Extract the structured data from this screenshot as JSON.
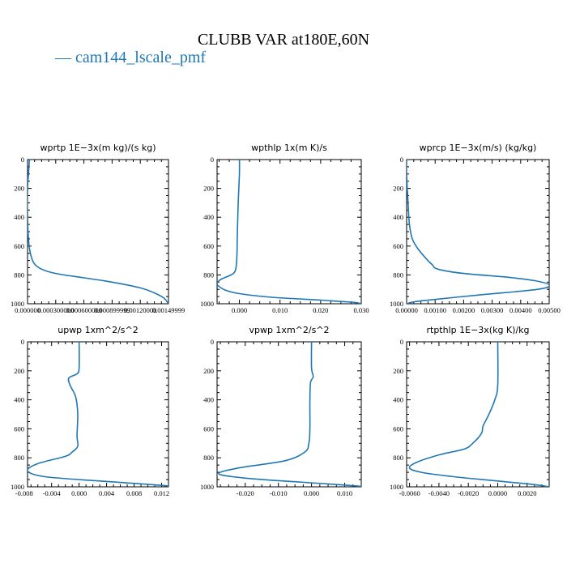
{
  "figure": {
    "title": "CLUBB VAR at180E,60N",
    "legend_label": "— cam144_lscale_pmf",
    "line_color": "#1f77b4"
  },
  "chart_data": [
    {
      "type": "line",
      "title": "wprtp   1E−3x(m kg)/(s kg)",
      "xlim": [
        0,
        0.0015
      ],
      "ylim": [
        1000,
        0
      ],
      "xticks": [
        0,
        0.0003,
        0.0006,
        0.0009,
        0.0012,
        0.0015
      ],
      "xtick_labels": [
        "0.000000",
        "0.000300000",
        "0.000600000",
        "0.000899999",
        "0.00120000",
        "0.00149999"
      ],
      "yticks": [
        0,
        200,
        400,
        600,
        800,
        1000
      ],
      "ytick_labels": [
        "0",
        "200",
        "400",
        "600",
        "800",
        "1000"
      ],
      "x": [
        2e-05,
        1e-05,
        0.0,
        0.0,
        1e-05,
        3e-05,
        7e-05,
        0.00015,
        0.0003,
        0.0006,
        0.0009,
        0.0012,
        0.00135,
        0.00145,
        0.0015
      ],
      "y": [
        0,
        100,
        200,
        400,
        550,
        650,
        720,
        760,
        790,
        820,
        850,
        890,
        925,
        960,
        1000
      ]
    },
    {
      "type": "line",
      "title": "wpthlp   1x(m K)/s",
      "xlim": [
        -0.0055,
        0.03
      ],
      "ylim": [
        1000,
        0
      ],
      "xticks": [
        0.0,
        0.01,
        0.02,
        0.03
      ],
      "xtick_labels": [
        "0.000",
        "0.010",
        "0.020",
        "0.030"
      ],
      "yticks": [
        0,
        200,
        400,
        600,
        800,
        1000
      ],
      "ytick_labels": [
        "0",
        "200",
        "400",
        "600",
        "800",
        "1000"
      ],
      "x": [
        0.0,
        0.0,
        -0.0003,
        -0.0005,
        -0.0006,
        -0.0008,
        -0.0015,
        -0.0045,
        -0.0055,
        -0.005,
        -0.0035,
        0.0,
        0.008,
        0.02,
        0.028,
        0.03
      ],
      "y": [
        0,
        100,
        300,
        500,
        650,
        740,
        790,
        830,
        860,
        880,
        905,
        930,
        955,
        975,
        990,
        1000
      ]
    },
    {
      "type": "line",
      "title": "wprcp   1E−3x(m/s) (kg/kg)",
      "xlim": [
        0,
        0.005
      ],
      "ylim": [
        1000,
        0
      ],
      "xticks": [
        0,
        0.001,
        0.002,
        0.003,
        0.004,
        0.005
      ],
      "xtick_labels": [
        "0.00000",
        "0.00100",
        "0.00200",
        "0.00300",
        "0.00400",
        "0.00500"
      ],
      "yticks": [
        0,
        200,
        400,
        600,
        800,
        1000
      ],
      "ytick_labels": [
        "0",
        "200",
        "400",
        "600",
        "800",
        "1000"
      ],
      "x": [
        0.0,
        0.0,
        5e-05,
        0.0001,
        0.0002,
        0.0004,
        0.0007,
        0.0009,
        0.0011,
        0.002,
        0.0035,
        0.0045,
        0.005,
        0.0046,
        0.0025,
        0.0005,
        0.0
      ],
      "y": [
        0,
        100,
        300,
        450,
        550,
        620,
        690,
        730,
        760,
        790,
        815,
        840,
        870,
        900,
        940,
        980,
        1000
      ]
    },
    {
      "type": "line",
      "title": "upwp   1xm^2/s^2",
      "xlim": [
        -0.0075,
        0.013
      ],
      "ylim": [
        1000,
        0
      ],
      "xticks": [
        -0.008,
        -0.004,
        0.0,
        0.004,
        0.008,
        0.012
      ],
      "xtick_labels": [
        "-0.008",
        "-0.004",
        "0.000",
        "0.004",
        "0.008",
        "0.012"
      ],
      "yticks": [
        0,
        200,
        400,
        600,
        800,
        1000
      ],
      "ytick_labels": [
        "0",
        "200",
        "400",
        "600",
        "800",
        "1000"
      ],
      "x": [
        0.0,
        0.0,
        -0.0003,
        -0.0015,
        -0.0013,
        -0.0005,
        -0.0002,
        -0.0003,
        -0.0002,
        -0.001,
        -0.002,
        -0.006,
        -0.0075,
        -0.005,
        0.003,
        0.012,
        0.013
      ],
      "y": [
        0,
        180,
        220,
        250,
        300,
        380,
        500,
        650,
        720,
        760,
        790,
        840,
        890,
        930,
        960,
        990,
        1000
      ]
    },
    {
      "type": "line",
      "title": "vpwp   1xm^2/s^2",
      "xlim": [
        -0.0285,
        0.015
      ],
      "ylim": [
        1000,
        0
      ],
      "xticks": [
        -0.02,
        -0.01,
        0.0,
        0.01
      ],
      "xtick_labels": [
        "-0.020",
        "-0.010",
        "0.000",
        "0.010"
      ],
      "yticks": [
        0,
        200,
        400,
        600,
        800,
        1000
      ],
      "ytick_labels": [
        "0",
        "200",
        "400",
        "600",
        "800",
        "1000"
      ],
      "x": [
        0.0,
        0.0,
        0.0005,
        -0.0003,
        -0.0005,
        -0.0005,
        -0.0008,
        -0.002,
        -0.008,
        -0.022,
        -0.028,
        -0.02,
        -0.005,
        0.008,
        0.014,
        0.015
      ],
      "y": [
        0,
        180,
        240,
        280,
        400,
        600,
        700,
        760,
        820,
        870,
        910,
        940,
        965,
        985,
        995,
        1000
      ]
    },
    {
      "type": "line",
      "title": "rtpthlp   1E−3x(kg K)/kg",
      "xlim": [
        -0.0062,
        0.0035
      ],
      "ylim": [
        1000,
        0
      ],
      "xticks": [
        -0.006,
        -0.004,
        -0.002,
        0.0,
        0.002
      ],
      "xtick_labels": [
        "-0.0060",
        "-0.0040",
        "-0.0020",
        "0.0000",
        "0.0020"
      ],
      "yticks": [
        0,
        200,
        400,
        600,
        800,
        1000
      ],
      "ytick_labels": [
        "0",
        "200",
        "400",
        "600",
        "800",
        "1000"
      ],
      "x": [
        0.0,
        0.0,
        -0.0002,
        -0.0006,
        -0.001,
        -0.0011,
        -0.0017,
        -0.0023,
        -0.004,
        -0.0055,
        -0.006,
        -0.0052,
        -0.003,
        0.0,
        0.0025,
        0.0035
      ],
      "y": [
        0,
        300,
        400,
        500,
        580,
        630,
        700,
        740,
        780,
        830,
        870,
        900,
        930,
        960,
        985,
        1000
      ]
    }
  ]
}
